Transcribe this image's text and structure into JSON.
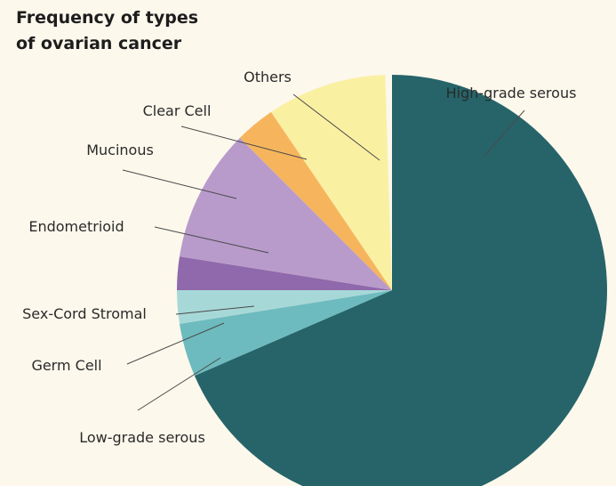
{
  "title_line1": "Frequency of types",
  "title_line2": "of ovarian cancer",
  "chart_data": {
    "type": "pie",
    "title": "Frequency of types of ovarian cancer",
    "start_angle_deg": 0,
    "direction": "clockwise",
    "slices": [
      {
        "label": "High-grade serous",
        "value": 68.5,
        "color": "#26646a"
      },
      {
        "label": "Low-grade serous",
        "value": 4.0,
        "color": "#6dbbbe"
      },
      {
        "label": "Germ Cell",
        "value": 2.5,
        "color": "#a7d8d8"
      },
      {
        "label": "Sex-Cord Stromal",
        "value": 2.5,
        "color": "#8f69ab"
      },
      {
        "label": "Endometrioid",
        "value": 10.0,
        "color": "#b89bcb"
      },
      {
        "label": "Mucinous",
        "value": 3.0,
        "color": "#f6b55d"
      },
      {
        "label": "Clear Cell",
        "value": 9.0,
        "color": "#faf0a2"
      },
      {
        "label": "Others",
        "value": 0.5,
        "color": "#fdf8ec"
      }
    ],
    "leader_color": "#4a4a4a",
    "background": "#fdf8ec"
  }
}
